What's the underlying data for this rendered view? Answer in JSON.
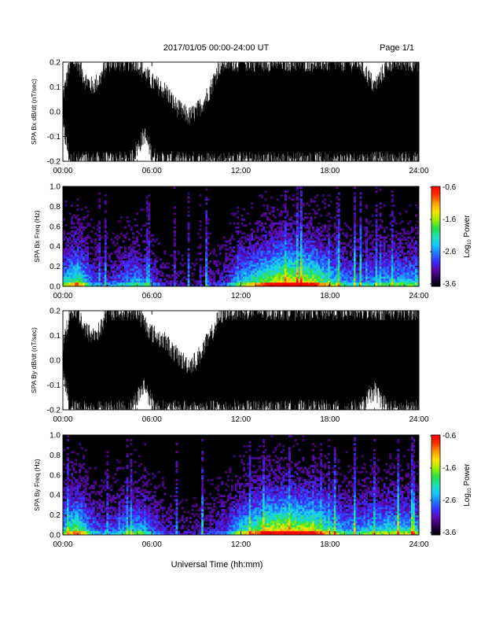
{
  "header": {
    "title": "2017/01/05  00:00-24:00 UT",
    "page": "Page 1/1"
  },
  "footer": {
    "xlabel": "Universal Time (hh:mm)"
  },
  "colors": {
    "trace": "#000000",
    "background": "#ffffff",
    "colormap": [
      "#000000",
      "#2a0050",
      "#5a0aa8",
      "#3a2cff",
      "#1f7dff",
      "#19c8ff",
      "#20e0b0",
      "#28e040",
      "#a0f000",
      "#ffe000",
      "#ff9a00",
      "#ff3000",
      "#ff0000"
    ]
  },
  "chart_data": [
    {
      "type": "line",
      "title": "",
      "ylabel": "SPA Bx dB/dt (nT/sec)",
      "xlim": [
        0,
        24
      ],
      "ylim": [
        -0.2,
        0.2
      ],
      "x_ticks": [
        "00:00",
        "06:00",
        "12:00",
        "18:00",
        "24:00"
      ],
      "y_ticks": [
        "-0.2",
        "-0.1",
        "0.0",
        "0.1",
        "0.2"
      ],
      "envelope_hours": [
        0,
        0.5,
        1,
        1.5,
        2,
        2.5,
        3,
        3.5,
        4,
        4.5,
        5,
        5.5,
        6,
        6.5,
        7,
        7.5,
        8,
        8.5,
        9,
        9.5,
        10,
        10.5,
        11,
        11.5,
        12,
        13,
        14,
        15,
        16,
        17,
        18,
        19,
        20,
        21,
        22,
        23,
        24
      ],
      "envelope_upper": [
        0.06,
        0.2,
        0.2,
        0.13,
        0.1,
        0.13,
        0.2,
        0.2,
        0.2,
        0.2,
        0.2,
        0.16,
        0.12,
        0.1,
        0.08,
        0.03,
        0.0,
        -0.02,
        0.0,
        0.04,
        0.1,
        0.18,
        0.2,
        0.2,
        0.2,
        0.2,
        0.2,
        0.2,
        0.2,
        0.2,
        0.2,
        0.2,
        0.2,
        0.1,
        0.2,
        0.2,
        0.2
      ],
      "envelope_lower": [
        -0.06,
        -0.2,
        -0.2,
        -0.2,
        -0.2,
        -0.2,
        -0.2,
        -0.2,
        -0.2,
        -0.2,
        -0.15,
        -0.09,
        -0.17,
        -0.2,
        -0.2,
        -0.2,
        -0.2,
        -0.2,
        -0.2,
        -0.2,
        -0.2,
        -0.2,
        -0.2,
        -0.2,
        -0.2,
        -0.2,
        -0.2,
        -0.2,
        -0.2,
        -0.2,
        -0.2,
        -0.2,
        -0.2,
        -0.2,
        -0.2,
        -0.2,
        -0.2
      ]
    },
    {
      "type": "heatmap",
      "title": "",
      "ylabel": "SPA Bx Freq (Hz)",
      "xlim": [
        0,
        24
      ],
      "ylim": [
        0,
        1.0
      ],
      "x_ticks": [
        "00:00",
        "06:00",
        "12:00",
        "18:00",
        "24:00"
      ],
      "y_ticks": [
        "0.0",
        "0.2",
        "0.4",
        "0.6",
        "0.8",
        "1.0"
      ],
      "colorbar": {
        "label": "Log",
        "label_sub": "10",
        "label_tail": " Power",
        "ticks": [
          "-0.6",
          "-1.6",
          "-2.6",
          "-3.6"
        ],
        "range": [
          -3.6,
          -0.6
        ]
      },
      "activity_hours": [
        0,
        1,
        2,
        3,
        4,
        5,
        6,
        7,
        8,
        9,
        10,
        11,
        12,
        13,
        14,
        15,
        16,
        17,
        18,
        19,
        20,
        21,
        22,
        23,
        24
      ],
      "activity_level": [
        0.5,
        0.7,
        0.3,
        0.25,
        0.35,
        0.45,
        0.3,
        0.15,
        0.12,
        0.12,
        0.15,
        0.25,
        0.5,
        0.65,
        0.8,
        0.9,
        0.85,
        0.8,
        0.55,
        0.4,
        0.35,
        0.4,
        0.45,
        0.5,
        0.45
      ]
    },
    {
      "type": "line",
      "title": "",
      "ylabel": "SPA By dB/dt (nT/sec)",
      "xlim": [
        0,
        24
      ],
      "ylim": [
        -0.2,
        0.2
      ],
      "x_ticks": [
        "00:00",
        "06:00",
        "12:00",
        "18:00",
        "24:00"
      ],
      "y_ticks": [
        "-0.2",
        "-0.1",
        "0.0",
        "0.1",
        "0.2"
      ],
      "envelope_hours": [
        0,
        0.5,
        1,
        1.5,
        2,
        2.5,
        3,
        3.5,
        4,
        4.5,
        5,
        5.5,
        6,
        6.5,
        7,
        7.5,
        8,
        8.5,
        9,
        9.5,
        10,
        10.5,
        11,
        11.5,
        12,
        13,
        14,
        15,
        16,
        17,
        18,
        19,
        20,
        21,
        22,
        23,
        24
      ],
      "envelope_upper": [
        0.06,
        0.2,
        0.2,
        0.12,
        0.1,
        0.12,
        0.2,
        0.2,
        0.2,
        0.2,
        0.2,
        0.15,
        0.11,
        0.09,
        0.07,
        0.03,
        0.0,
        -0.02,
        0.0,
        0.05,
        0.1,
        0.17,
        0.2,
        0.2,
        0.2,
        0.2,
        0.2,
        0.2,
        0.2,
        0.2,
        0.2,
        0.2,
        0.2,
        0.2,
        0.2,
        0.2,
        0.2
      ],
      "envelope_lower": [
        -0.05,
        -0.2,
        -0.2,
        -0.2,
        -0.2,
        -0.2,
        -0.2,
        -0.2,
        -0.2,
        -0.2,
        -0.15,
        -0.1,
        -0.17,
        -0.2,
        -0.2,
        -0.2,
        -0.2,
        -0.2,
        -0.2,
        -0.2,
        -0.2,
        -0.2,
        -0.2,
        -0.2,
        -0.2,
        -0.2,
        -0.2,
        -0.2,
        -0.2,
        -0.2,
        -0.2,
        -0.2,
        -0.2,
        -0.12,
        -0.2,
        -0.2,
        -0.2
      ]
    },
    {
      "type": "heatmap",
      "title": "",
      "ylabel": "SPA By Freq (Hz)",
      "xlim": [
        0,
        24
      ],
      "ylim": [
        0,
        1.0
      ],
      "x_ticks": [
        "00:00",
        "06:00",
        "12:00",
        "18:00",
        "24:00"
      ],
      "y_ticks": [
        "0.0",
        "0.2",
        "0.4",
        "0.6",
        "0.8",
        "1.0"
      ],
      "colorbar": {
        "label": "Log",
        "label_sub": "10",
        "label_tail": " Power",
        "ticks": [
          "-0.6",
          "-1.6",
          "-2.6",
          "-3.6"
        ],
        "range": [
          -3.6,
          -0.6
        ]
      },
      "activity_hours": [
        0,
        1,
        2,
        3,
        4,
        5,
        6,
        7,
        8,
        9,
        10,
        11,
        12,
        13,
        14,
        15,
        16,
        17,
        18,
        19,
        20,
        21,
        22,
        23,
        24
      ],
      "activity_level": [
        0.5,
        0.75,
        0.35,
        0.3,
        0.4,
        0.5,
        0.35,
        0.2,
        0.15,
        0.15,
        0.2,
        0.3,
        0.55,
        0.7,
        0.85,
        0.9,
        0.85,
        0.8,
        0.6,
        0.45,
        0.45,
        0.5,
        0.55,
        0.55,
        0.5
      ]
    }
  ]
}
